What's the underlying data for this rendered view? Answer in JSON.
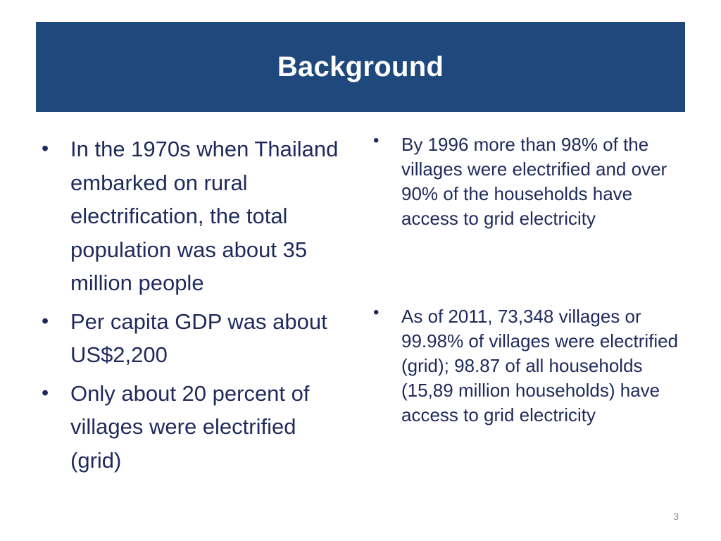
{
  "slide": {
    "title": "Background",
    "page_number": "3",
    "colors": {
      "title_bar": "#1f497d",
      "title_text": "#ffffff",
      "body_text": "#1f2a5c"
    }
  },
  "left_column": {
    "bullets": [
      "In the 1970s when Thailand embarked on rural electrification, the total population was about 35 million people",
      "Per capita GDP was about US$2,200",
      "Only about 20 percent of villages were electrified (grid)"
    ]
  },
  "right_column": {
    "bullets": [
      "By 1996 more than 98% of the villages were electrified and over 90% of the households have access to grid electricity",
      "As of 2011, 73,348 villages or 99.98% of villages were electrified (grid); 98.87 of all households (15,89 million households) have access to grid electricity"
    ]
  },
  "bullet_symbol": "•"
}
